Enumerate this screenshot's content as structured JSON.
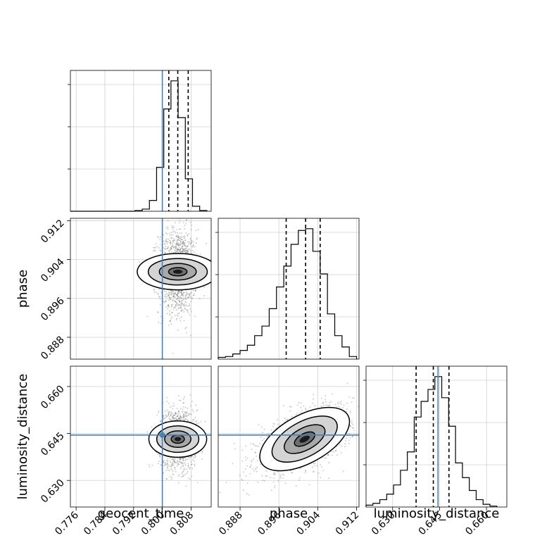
{
  "chart_data": {
    "type": "corner",
    "parameters": [
      "geocent_time",
      "phase",
      "luminosity_distance"
    ],
    "axis_labels": {
      "geocent_time": "geocent_time",
      "phase": "phase",
      "luminosity_distance": "luminosity_distance"
    },
    "ranges": {
      "geocent_time": [
        0.7744,
        0.8136
      ],
      "phase": [
        0.8835,
        0.9125
      ],
      "luminosity_distance": [
        0.6215,
        0.6665
      ]
    },
    "ticks": {
      "geocent_time": [
        "0.776",
        "0.784",
        "0.792",
        "0.800",
        "0.808"
      ],
      "phase": [
        "0.888",
        "0.896",
        "0.904",
        "0.912"
      ],
      "luminosity_distance": [
        "0.630",
        "0.645",
        "0.660"
      ]
    },
    "tick_values": {
      "geocent_time": [
        0.776,
        0.784,
        0.792,
        0.8,
        0.808
      ],
      "phase": [
        0.888,
        0.896,
        0.904,
        0.912
      ],
      "luminosity_distance": [
        0.63,
        0.645,
        0.66
      ]
    },
    "truths": {
      "geocent_time": 0.8,
      "phase": null,
      "luminosity_distance": 0.6445
    },
    "quantiles": {
      "geocent_time": [
        0.8018,
        0.8043,
        0.8072
      ],
      "phase": [
        0.8975,
        0.9015,
        0.9045
      ],
      "luminosity_distance": [
        0.6375,
        0.643,
        0.648
      ]
    },
    "histograms": {
      "geocent_time": {
        "edges": [
          0.7744,
          0.7764,
          0.7784,
          0.7804,
          0.7824,
          0.7844,
          0.7864,
          0.7884,
          0.7904,
          0.7924,
          0.7944,
          0.7964,
          0.7984,
          0.8004,
          0.8024,
          0.8044,
          0.8064,
          0.8084,
          0.8104,
          0.8124
        ],
        "counts": [
          0,
          0,
          0,
          0,
          0,
          0,
          0,
          0,
          0,
          1,
          3,
          15,
          61,
          142,
          181,
          130,
          45,
          7,
          1
        ]
      },
      "phase": {
        "edges": [
          0.8835,
          0.885,
          0.8865,
          0.888,
          0.8895,
          0.891,
          0.8925,
          0.894,
          0.8955,
          0.897,
          0.8985,
          0.9,
          0.9015,
          0.903,
          0.9045,
          0.906,
          0.9075,
          0.909,
          0.9105,
          0.912
        ],
        "counts": [
          2,
          3,
          6,
          10,
          16,
          27,
          38,
          58,
          83,
          107,
          132,
          148,
          150,
          124,
          98,
          52,
          27,
          14,
          3
        ]
      },
      "luminosity_distance": {
        "edges": [
          0.6215,
          0.6237,
          0.6259,
          0.6281,
          0.6303,
          0.6325,
          0.6347,
          0.6369,
          0.6391,
          0.6413,
          0.6435,
          0.6457,
          0.6479,
          0.6501,
          0.6523,
          0.6545,
          0.6567,
          0.6589,
          0.6611,
          0.6633
        ],
        "counts": [
          2,
          4,
          8,
          14,
          24,
          40,
          60,
          98,
          115,
          128,
          142,
          119,
          88,
          48,
          32,
          18,
          8,
          3,
          1
        ]
      }
    },
    "contours": [
      {
        "x": "geocent_time",
        "y": "phase",
        "center": [
          0.8043,
          0.9015
        ],
        "sigma": [
          0.0023,
          0.0038
        ],
        "rho": 0.0,
        "levels": [
          0.5,
          1.0,
          1.6,
          2.2
        ]
      },
      {
        "x": "geocent_time",
        "y": "luminosity_distance",
        "center": [
          0.8043,
          0.6432
        ],
        "sigma": [
          0.0023,
          0.0042
        ],
        "rho": 0.0,
        "levels": [
          0.5,
          1.0,
          1.6,
          2.2
        ]
      },
      {
        "x": "phase",
        "y": "luminosity_distance",
        "center": [
          0.9013,
          0.6432
        ],
        "sigma": [
          0.0042,
          0.0046
        ],
        "rho": 0.55,
        "levels": [
          0.5,
          1.0,
          1.6,
          2.2
        ]
      }
    ],
    "truth_color": "#4682b4",
    "grid": true
  }
}
